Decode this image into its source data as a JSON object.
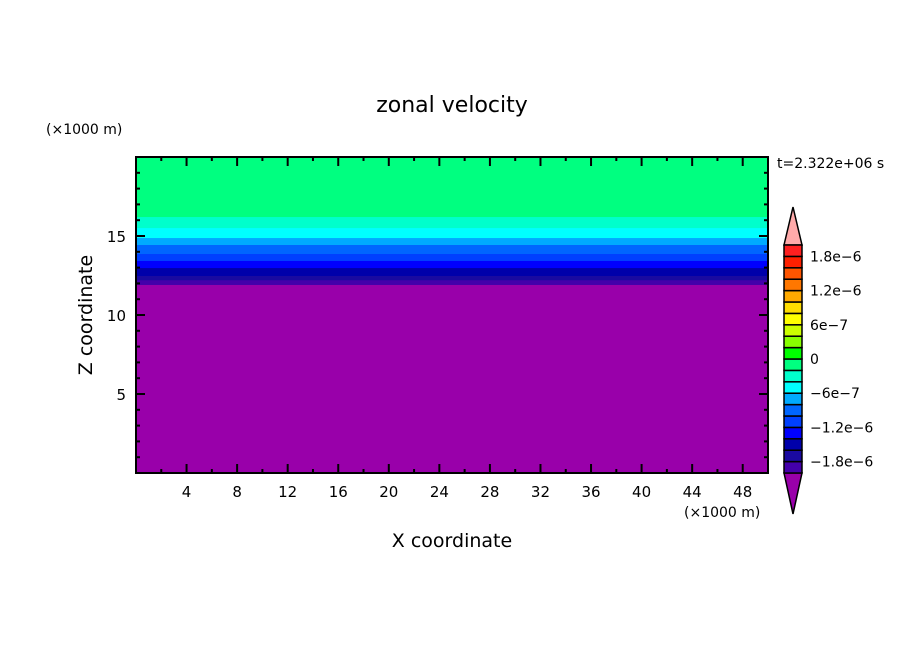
{
  "chart_data": {
    "type": "heatmap",
    "title": "zonal velocity",
    "xlabel": "X coordinate",
    "ylabel": "Z coordinate",
    "x_unit": "(×1000 m)",
    "y_unit": "(×1000 m)",
    "time_label": "t=2.322e+06 s",
    "xlim": [
      0,
      50
    ],
    "ylim": [
      0,
      20
    ],
    "x_ticks": [
      4,
      8,
      12,
      16,
      20,
      24,
      28,
      32,
      36,
      40,
      44,
      48
    ],
    "x_minor_step": 2,
    "y_ticks": [
      5,
      10,
      15
    ],
    "y_minor_step": 1,
    "bands": [
      {
        "z_bottom": 16.2,
        "z_top": 20,
        "level_range": [
          -2e-07,
          0
        ]
      },
      {
        "z_bottom": 15.5,
        "z_top": 16.2,
        "level_range": [
          -4e-07,
          -2e-07
        ]
      },
      {
        "z_bottom": 14.87,
        "z_top": 15.5,
        "level_range": [
          -6e-07,
          -4e-07
        ]
      },
      {
        "z_bottom": 14.43,
        "z_top": 14.87,
        "level_range": [
          -8e-07,
          -6e-07
        ]
      },
      {
        "z_bottom": 13.86,
        "z_top": 14.43,
        "level_range": [
          -1e-06,
          -8e-07
        ]
      },
      {
        "z_bottom": 13.42,
        "z_top": 13.86,
        "level_range": [
          -1.2e-06,
          -1e-06
        ]
      },
      {
        "z_bottom": 12.97,
        "z_top": 13.42,
        "level_range": [
          -1.4e-06,
          -1.2e-06
        ]
      },
      {
        "z_bottom": 12.47,
        "z_top": 12.97,
        "level_range": [
          -1.6e-06,
          -1.4e-06
        ]
      },
      {
        "z_bottom": 12.2,
        "z_top": 12.47,
        "level_range": [
          -1.8e-06,
          -1.6e-06
        ]
      },
      {
        "z_bottom": 11.9,
        "z_top": 12.2,
        "level_range": [
          -2e-06,
          -1.8e-06
        ]
      },
      {
        "z_bottom": 0,
        "z_top": 11.9,
        "level_range": [
          "below",
          -2e-06
        ]
      }
    ],
    "colorbar": {
      "levels_min": -2e-06,
      "levels_max": 2e-06,
      "step": 2e-07,
      "colors_low_to_high": [
        "#4400aa",
        "#1a0aa0",
        "#0000aa",
        "#0000ff",
        "#0040ff",
        "#0066ff",
        "#00aaff",
        "#00ffff",
        "#00ffcc",
        "#00ff80",
        "#00ff00",
        "#88ff00",
        "#ccff00",
        "#ffff00",
        "#ffdd00",
        "#ffaa00",
        "#ff7700",
        "#ff5500",
        "#ff2000",
        "#ff2020"
      ],
      "under_color": "#9900aa",
      "over_color": "#ffaaaa",
      "tick_values": [
        1.8e-06,
        1.2e-06,
        6e-07,
        0,
        -6e-07,
        -1.2e-06,
        -1.8e-06
      ],
      "tick_labels": [
        "1.8e−6",
        "1.2e−6",
        "6e−7",
        "0",
        "−6e−7",
        "−1.2e−6",
        "−1.8e−6"
      ]
    }
  }
}
